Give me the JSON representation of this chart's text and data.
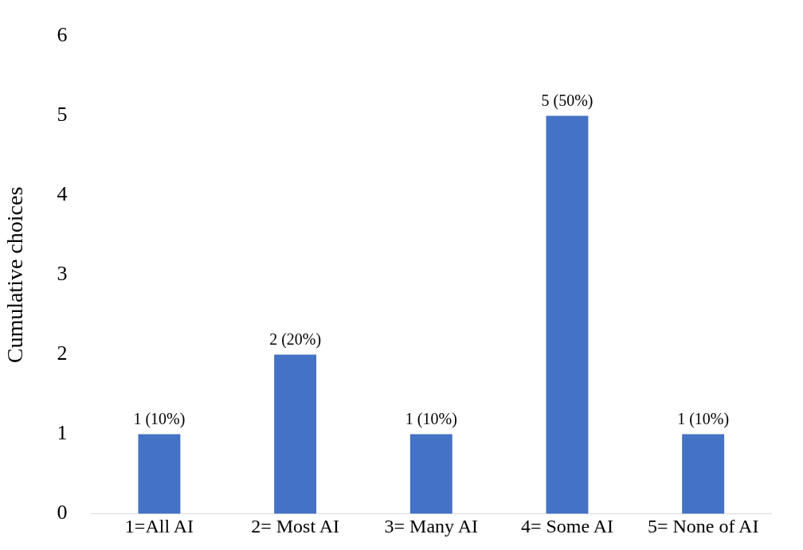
{
  "chart_data": {
    "type": "bar",
    "ylabel": "Cumulative choices",
    "categories": [
      "1=All AI",
      "2= Most AI",
      "3= Many AI",
      "4= Some AI",
      "5= None of AI"
    ],
    "values": [
      1,
      2,
      1,
      5,
      1
    ],
    "value_labels": [
      "1 (10%)",
      "2 (20%)",
      "1 (10%)",
      "5 (50%)",
      "1 (10%)"
    ],
    "color": "#4472c4",
    "ylim": [
      0,
      6
    ],
    "yticks": [
      0,
      1,
      2,
      3,
      4,
      5,
      6
    ],
    "grid": false,
    "legend": false
  }
}
